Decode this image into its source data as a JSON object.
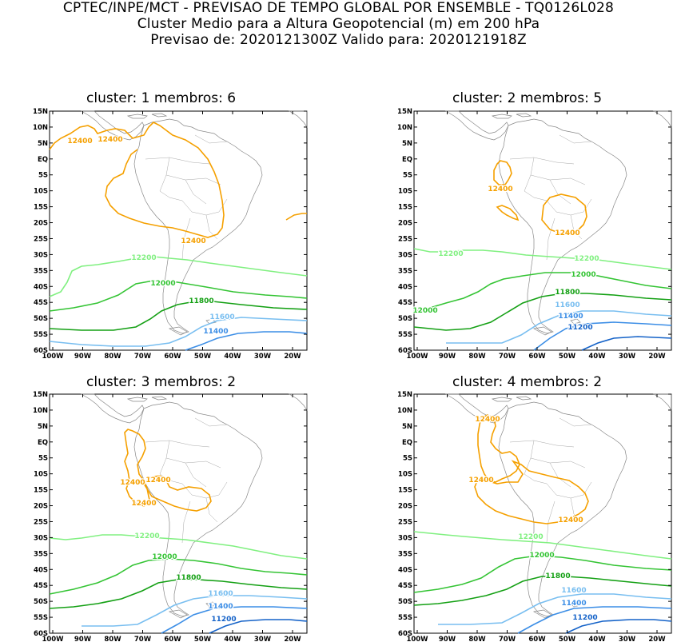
{
  "header": {
    "line1": "CPTEC/INPE/MCT - PREVISAO DE TEMPO GLOBAL POR ENSEMBLE - TQ0126L028",
    "line2": "Cluster Medio para a Altura Geopotencial (m) em 200 hPa",
    "line3": "Previsao de: 2020121300Z    Valido para: 2020121918Z"
  },
  "colors": {
    "c12400": "#f5a000",
    "c12200": "#80f080",
    "c12000": "#34c434",
    "c11800": "#14a014",
    "c11600": "#78bef0",
    "c11400": "#3c8ee6",
    "c11200": "#1462c8",
    "coast": "#888888"
  },
  "axes": {
    "lat_ticks": [
      "15N",
      "10N",
      "5N",
      "EQ",
      "5S",
      "10S",
      "15S",
      "20S",
      "25S",
      "30S",
      "35S",
      "40S",
      "45S",
      "50S",
      "55S",
      "60S"
    ],
    "lon_ticks": [
      "100W",
      "90W",
      "80W",
      "70W",
      "60W",
      "50W",
      "40W",
      "30W",
      "20W"
    ]
  },
  "panels": [
    {
      "title": "cluster: 1   membros: 6",
      "contour_labels": [
        {
          "text": "12400",
          "level": "c12400"
        },
        {
          "text": "12400",
          "level": "c12400"
        },
        {
          "text": "12400",
          "level": "c12400"
        },
        {
          "text": "12200",
          "level": "c12200"
        },
        {
          "text": "12000",
          "level": "c12000"
        },
        {
          "text": "11800",
          "level": "c11800"
        },
        {
          "text": "11600",
          "level": "c11600"
        },
        {
          "text": "11400",
          "level": "c11400"
        }
      ]
    },
    {
      "title": "cluster: 2   membros: 5",
      "contour_labels": [
        {
          "text": "12400",
          "level": "c12400"
        },
        {
          "text": "12400",
          "level": "c12400"
        },
        {
          "text": "12200",
          "level": "c12200"
        },
        {
          "text": "12200",
          "level": "c12200"
        },
        {
          "text": "12000",
          "level": "c12000"
        },
        {
          "text": "12000",
          "level": "c12000"
        },
        {
          "text": "11800",
          "level": "c11800"
        },
        {
          "text": "11600",
          "level": "c11600"
        },
        {
          "text": "11400",
          "level": "c11400"
        },
        {
          "text": "11200",
          "level": "c11200"
        }
      ]
    },
    {
      "title": "cluster: 3   membros: 2",
      "contour_labels": [
        {
          "text": "12400",
          "level": "c12400"
        },
        {
          "text": "12400",
          "level": "c12400"
        },
        {
          "text": "12400",
          "level": "c12400"
        },
        {
          "text": "12200",
          "level": "c12200"
        },
        {
          "text": "12000",
          "level": "c12000"
        },
        {
          "text": "11800",
          "level": "c11800"
        },
        {
          "text": "11600",
          "level": "c11600"
        },
        {
          "text": "11400",
          "level": "c11400"
        },
        {
          "text": "11200",
          "level": "c11200"
        }
      ]
    },
    {
      "title": "cluster: 4   membros: 2",
      "contour_labels": [
        {
          "text": "12400",
          "level": "c12400"
        },
        {
          "text": "12400",
          "level": "c12400"
        },
        {
          "text": "12400",
          "level": "c12400"
        },
        {
          "text": "12200",
          "level": "c12200"
        },
        {
          "text": "12000",
          "level": "c12000"
        },
        {
          "text": "11800",
          "level": "c11800"
        },
        {
          "text": "11600",
          "level": "c11600"
        },
        {
          "text": "11400",
          "level": "c11400"
        },
        {
          "text": "11200",
          "level": "c11200"
        }
      ]
    }
  ]
}
